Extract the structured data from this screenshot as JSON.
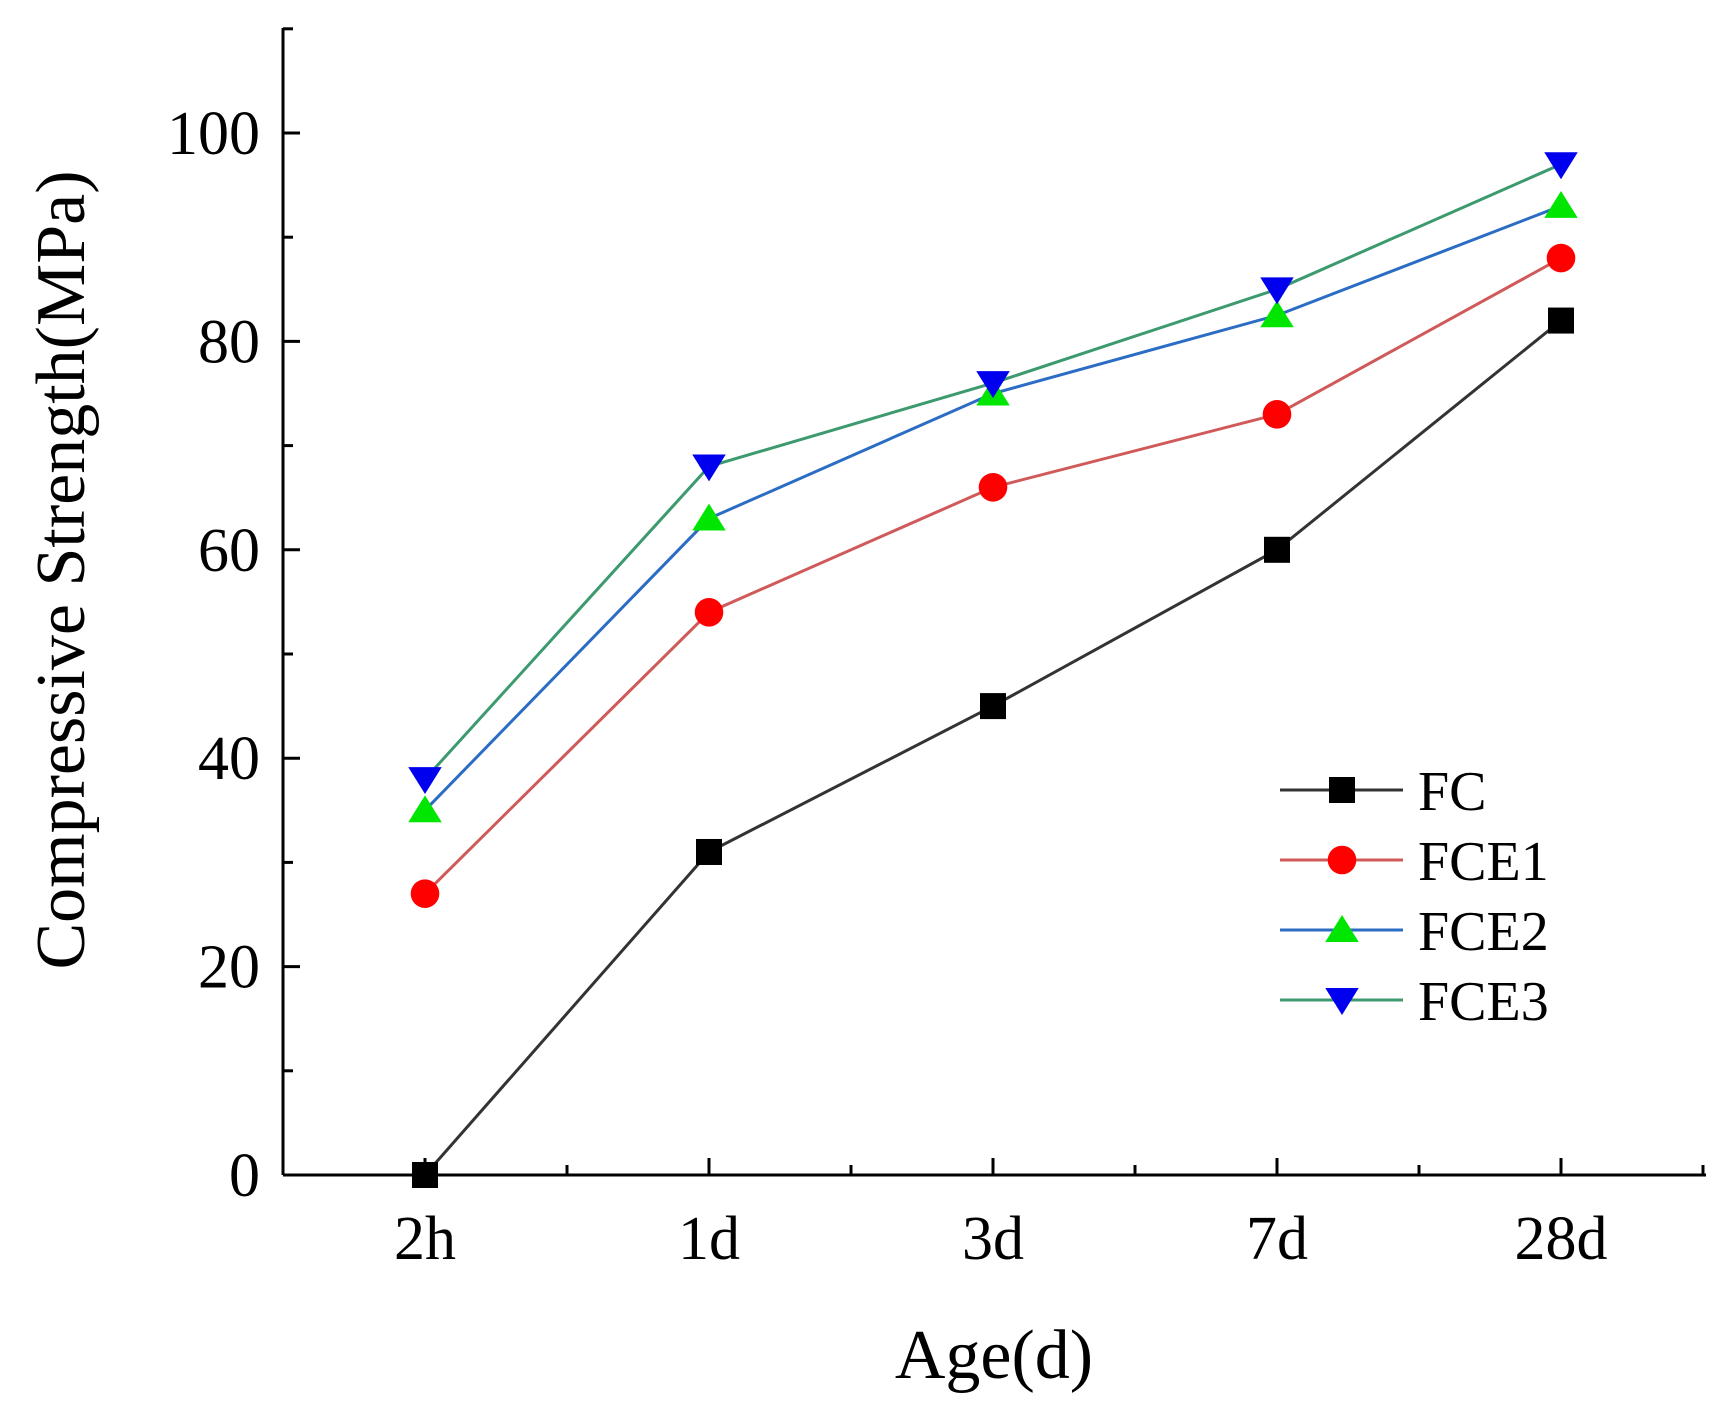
{
  "chart_data": {
    "type": "line",
    "title": "",
    "xlabel": "Age(d)",
    "ylabel": "Compressive Strength(MPa)",
    "categories": [
      "2h",
      "1d",
      "3d",
      "7d",
      "28d"
    ],
    "ylim": [
      0,
      110
    ],
    "yticks": [
      0,
      20,
      40,
      60,
      80,
      100
    ],
    "yminor": [
      10,
      30,
      50,
      70,
      90,
      110
    ],
    "grid": false,
    "legend_position": "lower-right",
    "series": [
      {
        "name": "FC",
        "values": [
          0,
          31,
          45,
          60,
          82
        ],
        "color": "#000000",
        "line_color": "#333333",
        "marker": "square"
      },
      {
        "name": "FCE1",
        "values": [
          27,
          54,
          66,
          73,
          88
        ],
        "color": "#ff0000",
        "line_color": "#d05a5a",
        "marker": "circle"
      },
      {
        "name": "FCE2",
        "values": [
          35,
          63,
          75,
          82.5,
          93
        ],
        "color": "#00e600",
        "line_color": "#2b6cc4",
        "marker": "triangle-up"
      },
      {
        "name": "FCE3",
        "values": [
          38,
          68,
          76,
          85,
          97
        ],
        "color": "#0000ee",
        "line_color": "#3c9a6e",
        "marker": "triangle-down"
      }
    ]
  }
}
